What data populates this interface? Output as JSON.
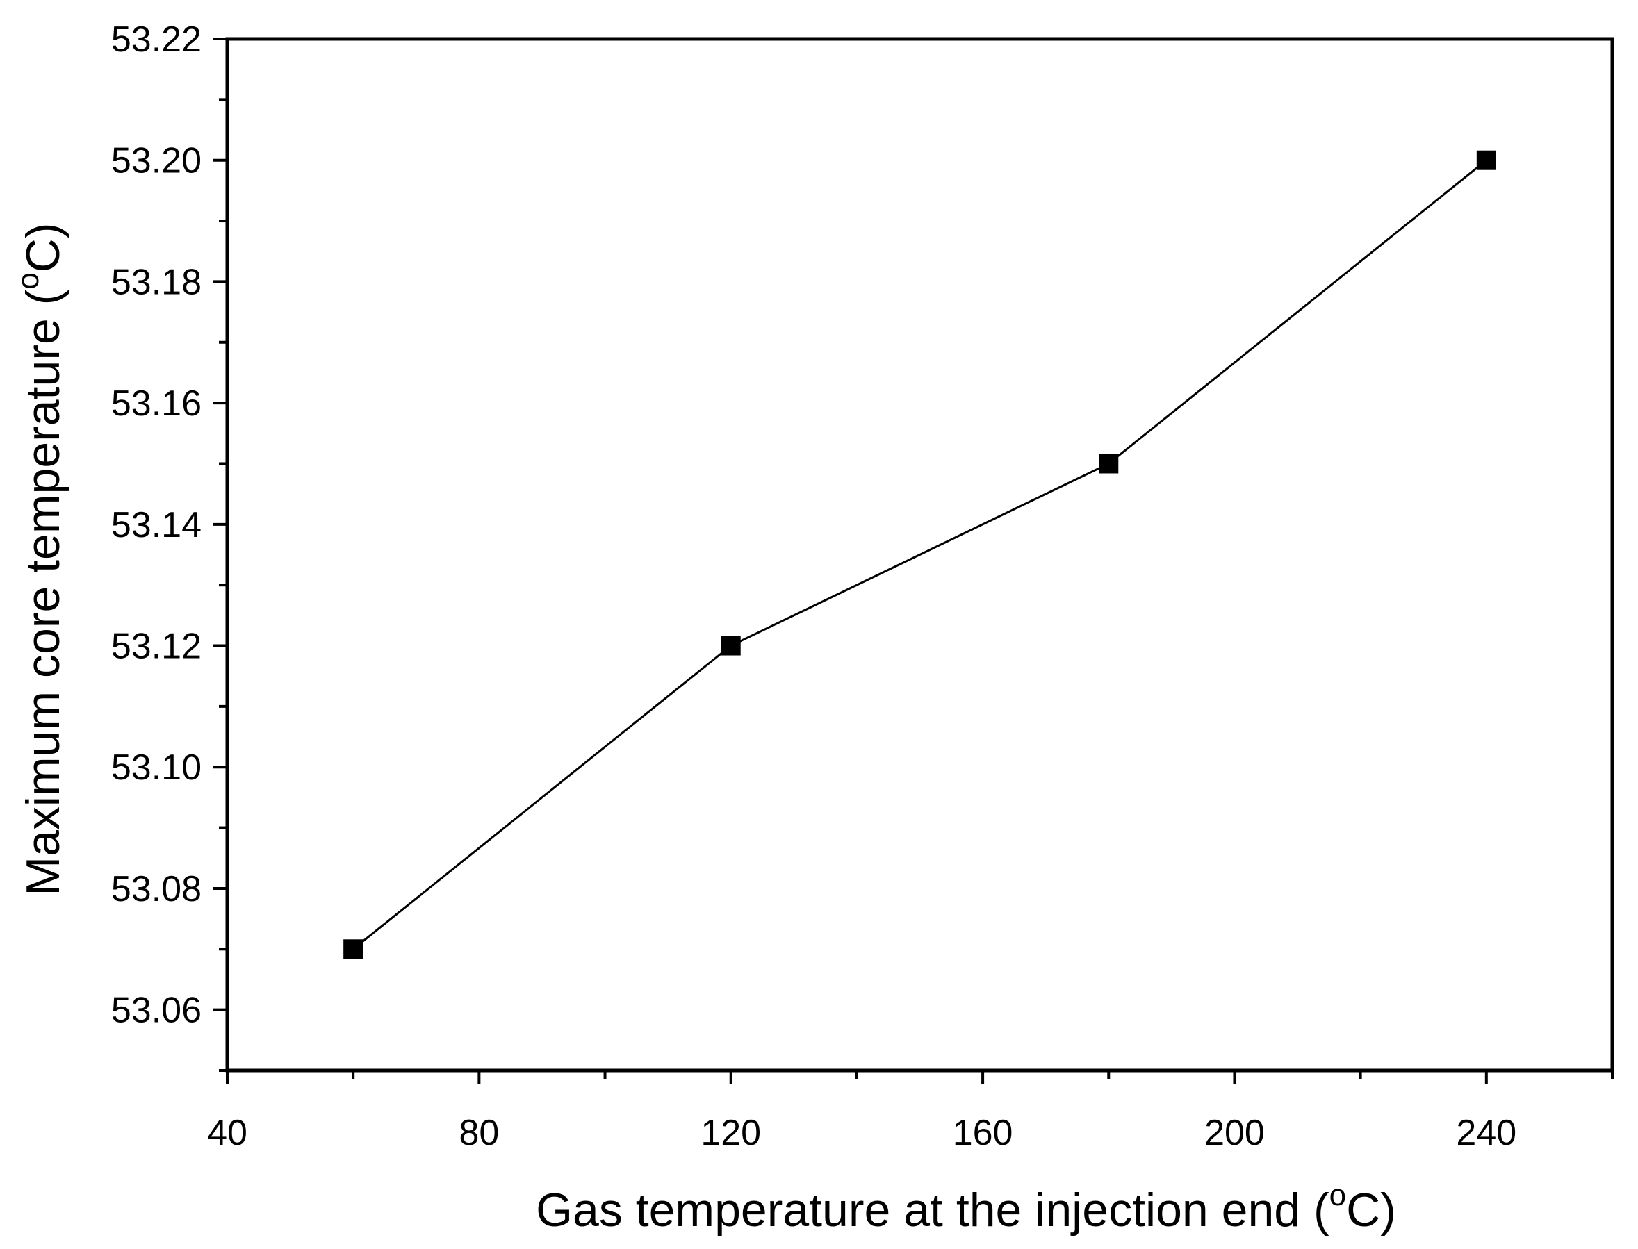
{
  "chart_data": {
    "type": "line",
    "title": "",
    "xlabel": {
      "text": "Gas temperature at the injection end (",
      "superscript": "o",
      "unit": "C)"
    },
    "ylabel": {
      "text": "Maximum core temperature (",
      "superscript": "o",
      "unit": "C)"
    },
    "xlim": [
      40,
      260
    ],
    "ylim": [
      53.05,
      53.22
    ],
    "xticks": [
      40,
      80,
      120,
      160,
      200,
      240
    ],
    "xtick_labels": [
      "40",
      "80",
      "120",
      "160",
      "200",
      "240"
    ],
    "yticks": [
      53.06,
      53.08,
      53.1,
      53.12,
      53.14,
      53.16,
      53.18,
      53.2,
      53.22
    ],
    "ytick_labels": [
      "53.06",
      "53.08",
      "53.10",
      "53.12",
      "53.14",
      "53.16",
      "53.18",
      "53.20",
      "53.22"
    ],
    "series": [
      {
        "name": "Maximum core temperature",
        "marker": "square",
        "color": "#000000",
        "x": [
          60,
          120,
          180,
          240
        ],
        "y": [
          53.07,
          53.12,
          53.15,
          53.2
        ]
      }
    ],
    "legend": "none",
    "grid": false
  }
}
